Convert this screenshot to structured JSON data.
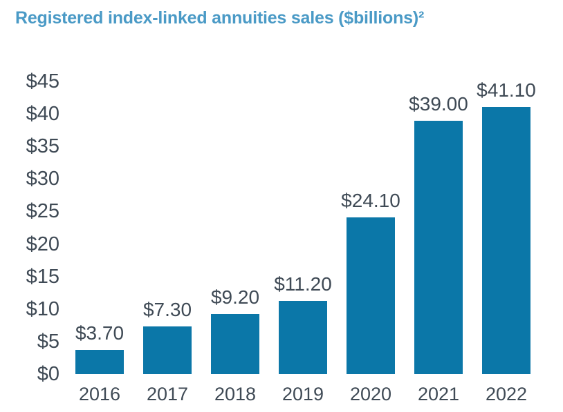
{
  "title": {
    "text": "Registered index-linked annuities sales ($billions)²",
    "color": "#4a9ac6"
  },
  "chart_data": {
    "type": "bar",
    "title": "Registered index-linked annuities sales ($billions)²",
    "categories": [
      "2016",
      "2017",
      "2018",
      "2019",
      "2020",
      "2021",
      "2022"
    ],
    "values": [
      3.7,
      7.3,
      9.2,
      11.2,
      24.1,
      39.0,
      41.1
    ],
    "value_labels": [
      "$3.70",
      "$7.30",
      "$9.20",
      "$11.20",
      "$24.10",
      "$39.00",
      "$41.10"
    ],
    "xlabel": "",
    "ylabel": "",
    "ylim": [
      0,
      45
    ],
    "ytick_step": 5,
    "ytick_labels": [
      "$0",
      "$5",
      "$10",
      "$15",
      "$20",
      "$25",
      "$30",
      "$35",
      "$40",
      "$45"
    ],
    "bar_color": "#0b77a8",
    "text_color": "#3f4a55",
    "grid": false,
    "legend": false,
    "legend_position": "none"
  }
}
